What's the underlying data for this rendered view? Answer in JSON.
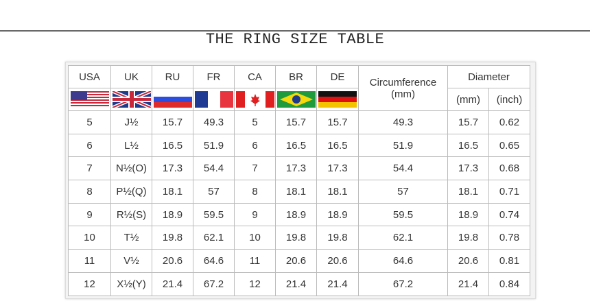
{
  "title": "THE RING SIZE TABLE",
  "headers": {
    "countries": [
      "USA",
      "UK",
      "RU",
      "FR",
      "CA",
      "BR",
      "DE"
    ],
    "circumference": "Circumference",
    "circumference_unit": "(mm)",
    "diameter": "Diameter",
    "diameter_mm": "(mm)",
    "diameter_inch": "(inch)"
  },
  "flags": [
    "usa-flag",
    "uk-flag",
    "russia-flag",
    "france-flag",
    "canada-flag",
    "brazil-flag",
    "germany-flag"
  ],
  "rows": [
    [
      "5",
      "J½",
      "15.7",
      "49.3",
      "5",
      "15.7",
      "15.7",
      "49.3",
      "15.7",
      "0.62"
    ],
    [
      "6",
      "L½",
      "16.5",
      "51.9",
      "6",
      "16.5",
      "16.5",
      "51.9",
      "16.5",
      "0.65"
    ],
    [
      "7",
      "N½(O)",
      "17.3",
      "54.4",
      "7",
      "17.3",
      "17.3",
      "54.4",
      "17.3",
      "0.68"
    ],
    [
      "8",
      "P½(Q)",
      "18.1",
      "57",
      "8",
      "18.1",
      "18.1",
      "57",
      "18.1",
      "0.71"
    ],
    [
      "9",
      "R½(S)",
      "18.9",
      "59.5",
      "9",
      "18.9",
      "18.9",
      "59.5",
      "18.9",
      "0.74"
    ],
    [
      "10",
      "T½",
      "19.8",
      "62.1",
      "10",
      "19.8",
      "19.8",
      "62.1",
      "19.8",
      "0.78"
    ],
    [
      "11",
      "V½",
      "20.6",
      "64.6",
      "11",
      "20.6",
      "20.6",
      "64.6",
      "20.6",
      "0.81"
    ],
    [
      "12",
      "X½(Y)",
      "21.4",
      "67.2",
      "12",
      "21.4",
      "21.4",
      "67.2",
      "21.4",
      "0.84"
    ]
  ]
}
